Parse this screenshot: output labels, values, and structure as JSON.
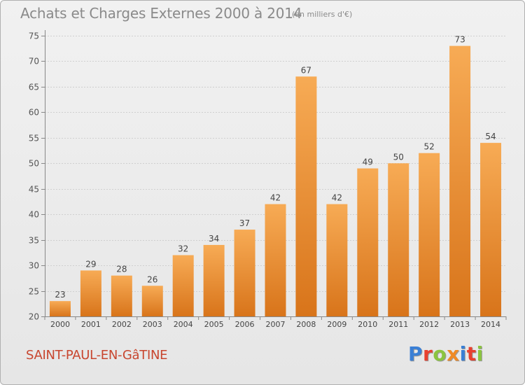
{
  "header": {
    "title": "Achats et Charges Externes 2000 à 2014",
    "subtitle": "(en milliers d'€)"
  },
  "footer": {
    "commune": "SAINT-PAUL-EN-GâTINE",
    "logo_text": "Proxiti",
    "logo_colors": [
      "#3a7fd5",
      "#e8402f",
      "#8bc43f",
      "#f08a24",
      "#3a7fd5",
      "#e8402f",
      "#8bc43f"
    ]
  },
  "chart_data": {
    "type": "bar",
    "title": "Achats et Charges Externes 2000 à 2014",
    "subtitle": "(en milliers d'€)",
    "xlabel": "",
    "ylabel": "",
    "categories": [
      "2000",
      "2001",
      "2002",
      "2003",
      "2004",
      "2005",
      "2006",
      "2007",
      "2008",
      "2009",
      "2010",
      "2011",
      "2012",
      "2013",
      "2014"
    ],
    "values": [
      23,
      29,
      28,
      26,
      32,
      34,
      37,
      42,
      67,
      42,
      49,
      50,
      52,
      73,
      54
    ],
    "ylim": [
      20,
      75
    ],
    "yticks": [
      20,
      25,
      30,
      35,
      40,
      45,
      50,
      55,
      60,
      65,
      70,
      75
    ],
    "grid": true,
    "data_labels": true,
    "bar_color": "#f0902c",
    "bar_color_light": "#f7ab55",
    "bar_color_dark": "#d8741a"
  }
}
